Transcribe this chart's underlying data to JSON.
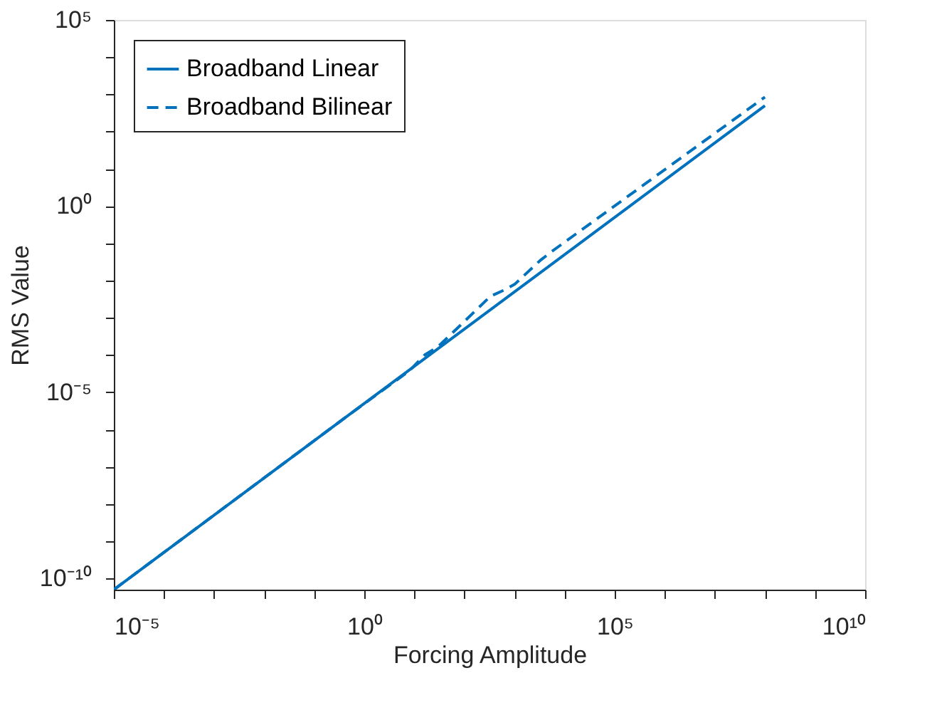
{
  "chart_data": {
    "type": "line",
    "xlabel": "Forcing Amplitude",
    "ylabel": "RMS Value",
    "log": "xy",
    "grid": false,
    "legend": "top left",
    "marker": "none",
    "xlim": [
      1e-05,
      10000000000.0
    ],
    "ylim": [
      5e-11,
      100000.0
    ],
    "xticks": [
      {
        "value": 1e-05,
        "label": "10⁻⁵"
      },
      {
        "value": 0.0001,
        "label": null
      },
      {
        "value": 0.001,
        "label": null
      },
      {
        "value": 0.01,
        "label": null
      },
      {
        "value": 0.1,
        "label": null
      },
      {
        "value": 1,
        "label": "10⁰"
      },
      {
        "value": 10.0,
        "label": null
      },
      {
        "value": 100.0,
        "label": null
      },
      {
        "value": 1000.0,
        "label": null
      },
      {
        "value": 10000.0,
        "label": null
      },
      {
        "value": 100000.0,
        "label": "10⁵"
      },
      {
        "value": 1000000.0,
        "label": null
      },
      {
        "value": 10000000.0,
        "label": null
      },
      {
        "value": 100000000.0,
        "label": null
      },
      {
        "value": 1000000000.0,
        "label": null
      },
      {
        "value": 10000000000.0,
        "label": "10¹⁰"
      }
    ],
    "yticks": [
      {
        "value": 1e-10,
        "label": "10⁻¹⁰"
      },
      {
        "value": 1e-09,
        "label": null
      },
      {
        "value": 1e-08,
        "label": null
      },
      {
        "value": 1e-07,
        "label": null
      },
      {
        "value": 1e-06,
        "label": null
      },
      {
        "value": 1e-05,
        "label": "10⁻⁵"
      },
      {
        "value": 0.0001,
        "label": null
      },
      {
        "value": 0.001,
        "label": null
      },
      {
        "value": 0.01,
        "label": null
      },
      {
        "value": 0.1,
        "label": null
      },
      {
        "value": 1,
        "label": "10⁰"
      },
      {
        "value": 10.0,
        "label": null
      },
      {
        "value": 100.0,
        "label": null
      },
      {
        "value": 1000.0,
        "label": null
      },
      {
        "value": 10000.0,
        "label": null
      },
      {
        "value": 100000.0,
        "label": "10⁵"
      }
    ],
    "series": [
      {
        "name": "Broadband Linear",
        "color": "#0072bd",
        "line_style": "solid",
        "x": [
          1e-05,
          100000000.0
        ],
        "values": [
          5e-11,
          500
        ]
      },
      {
        "name": "Broadband Bilinear",
        "color": "#0072bd",
        "line_style": "dashed",
        "x": [
          1e-05,
          0.5,
          8,
          16,
          30,
          100,
          330,
          630,
          1000,
          3200,
          5400,
          100000000.0
        ],
        "values": [
          5e-11,
          2.5e-06,
          3.8e-05,
          0.0001,
          0.00017,
          0.0008,
          0.0038,
          0.0056,
          0.0079,
          0.034,
          0.059,
          850
        ]
      }
    ]
  }
}
